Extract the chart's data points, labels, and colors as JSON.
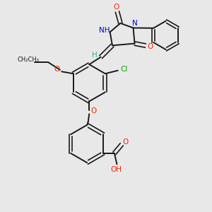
{
  "background_color": "#e8e8e8",
  "bond_color": "#1a1a1a",
  "oxygen_color": "#ff2200",
  "nitrogen_color": "#0000cc",
  "chlorine_color": "#00aa00",
  "h_color": "#2ab0a0",
  "figsize": [
    3.0,
    3.0
  ],
  "dpi": 100,
  "xlim": [
    0,
    10
  ],
  "ylim": [
    0,
    10
  ]
}
